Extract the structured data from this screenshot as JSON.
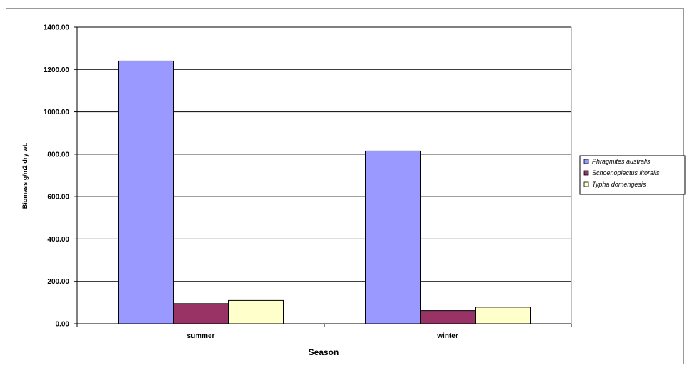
{
  "chart_data": {
    "type": "bar",
    "title": "",
    "xlabel": "Season",
    "ylabel": "Biomass g/m2 dry wt.",
    "categories": [
      "summer",
      "winter"
    ],
    "series": [
      {
        "name": "Phragmites australis",
        "color": "#9999ff",
        "values": [
          1240,
          815
        ]
      },
      {
        "name": "Schoenoplectus litoralis",
        "color": "#993366",
        "values": [
          95,
          62
        ]
      },
      {
        "name": "Typha domengesis",
        "color": "#ffffcc",
        "values": [
          110,
          78
        ]
      }
    ],
    "ylim": [
      0,
      1400
    ],
    "yticks": [
      0,
      200,
      400,
      600,
      800,
      1000,
      1200,
      1400
    ],
    "ytick_labels": [
      "0.00",
      "200.00",
      "400.00",
      "600.00",
      "800.00",
      "1000.00",
      "1200.00",
      "1400.00"
    ],
    "grid": true,
    "legend_position": "right"
  }
}
